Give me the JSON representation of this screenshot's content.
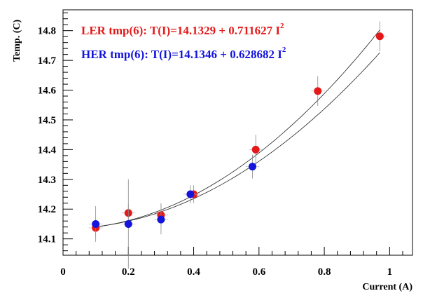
{
  "chart_data": {
    "type": "scatter",
    "title": "",
    "xlabel": "Current (A)",
    "ylabel": "Temp. (C)",
    "xlim": [
      0,
      1.07
    ],
    "ylim": [
      14.045,
      14.87
    ],
    "xticks": [
      0,
      0.2,
      0.4,
      0.6,
      0.8,
      1
    ],
    "xtick_labels": [
      "0",
      "0.2",
      "0.4",
      "0.6",
      "0.8",
      "1"
    ],
    "yticks": [
      14.1,
      14.2,
      14.3,
      14.4,
      14.5,
      14.6,
      14.7,
      14.8
    ],
    "ytick_labels": [
      "14.1",
      "14.2",
      "14.3",
      "14.4",
      "14.5",
      "14.6",
      "14.7",
      "14.8"
    ],
    "grid": false,
    "legend_position": "top-left",
    "series": [
      {
        "name": "LER",
        "color": "#e41a1a",
        "legend_text": "LER tmp(6): T(I)=14.1329 + 0.711627 I",
        "legend_sup": "2",
        "fit": {
          "a": 14.1329,
          "b": 0.711627
        },
        "points": [
          {
            "x": 0.1,
            "y": 14.137,
            "yerr": 0.03
          },
          {
            "x": 0.2,
            "y": 14.187,
            "yerr": 0.03
          },
          {
            "x": 0.3,
            "y": 14.18,
            "yerr": 0.04
          },
          {
            "x": 0.4,
            "y": 14.25,
            "yerr": 0.03
          },
          {
            "x": 0.59,
            "y": 14.4,
            "yerr": 0.05
          },
          {
            "x": 0.78,
            "y": 14.597,
            "yerr": 0.05
          },
          {
            "x": 0.97,
            "y": 14.781,
            "yerr": 0.05
          }
        ]
      },
      {
        "name": "HER",
        "color": "#1414dc",
        "legend_text": "HER tmp(6): T(I)=14.1346 + 0.628682 I",
        "legend_sup": "2",
        "fit": {
          "a": 14.1346,
          "b": 0.628682
        },
        "points": [
          {
            "x": 0.1,
            "y": 14.15,
            "yerr": 0.06
          },
          {
            "x": 0.2,
            "y": 14.15,
            "yerr": 0.15
          },
          {
            "x": 0.3,
            "y": 14.165,
            "yerr": 0.05
          },
          {
            "x": 0.39,
            "y": 14.25,
            "yerr": 0.03
          },
          {
            "x": 0.58,
            "y": 14.343,
            "yerr": 0.04
          }
        ]
      }
    ]
  }
}
